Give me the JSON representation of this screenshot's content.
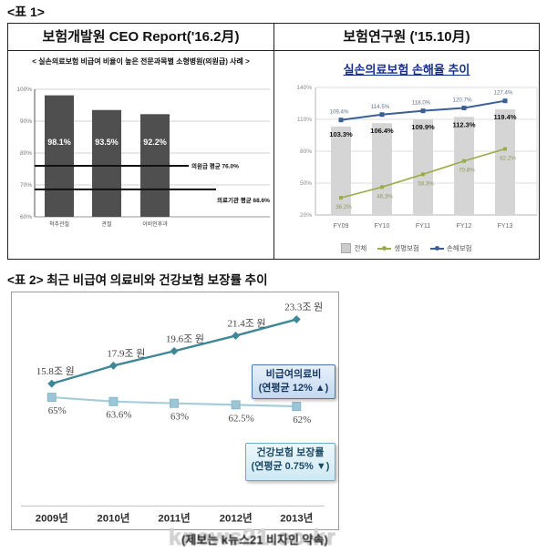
{
  "labels": {
    "table1_tag": "<표 1>",
    "table2_tag": "<표 2> 최근 비급여 의료비와 건강보험 보장률 추이"
  },
  "table1": {
    "left_header": "보험개발원 CEO Report('16.2月)",
    "left_subtitle": "< 실손의료보험 비급여 비율이 높은 전문과목별 소형병원(의원급) 사례 >",
    "right_header": "보험연구원 ('15.10月)",
    "right_subtitle": "실손의료보험 손해율 추이",
    "legend": [
      {
        "label": "전체",
        "swatch": "bar",
        "color": "#cccccc"
      },
      {
        "label": "생명보험",
        "swatch": "line-dot",
        "color": "#9aad4c"
      },
      {
        "label": "손해보험",
        "swatch": "line-dot",
        "color": "#3b5f94"
      }
    ]
  },
  "watermark": {
    "main": "knews21.co.kr",
    "overlay": "(제보는 k뉴스21 비자인 약속)"
  },
  "colors": {
    "dark_bar": "#4f4f4f",
    "light_bar": "#d5d5d5",
    "blue_line": "#3b5f94",
    "green_line": "#9aad4c",
    "teal_line": "#3e8796",
    "pale_blue_line": "#a6cdda",
    "title_blue": "#15308f"
  },
  "chart_data": [
    {
      "id": "specialty-nonpay-bars",
      "type": "bar",
      "title": "< 실손의료보험 비급여 비율이 높은 전문과목별 소형병원(의원급) 사례 >",
      "categories": [
        "척추관절",
        "관절",
        "이비인후과"
      ],
      "values": [
        98.1,
        93.5,
        92.2
      ],
      "value_labels": [
        "98.1%",
        "93.5%",
        "92.2%"
      ],
      "ylim": [
        60,
        100
      ],
      "yticks": [
        "100%",
        "90%",
        "80%",
        "70%",
        "60%"
      ],
      "ref_lines": [
        {
          "value": 76.0,
          "label": "의원급 평균 76.0%"
        },
        {
          "value": 68.6,
          "label": "의료기관 평균 68.6%"
        }
      ],
      "grid": true,
      "legend_position": "none"
    },
    {
      "id": "silson-loss-ratio",
      "type": "bar+line",
      "title": "실손의료보험 손해율 추이",
      "categories": [
        "FY09",
        "FY10",
        "FY11",
        "FY12",
        "FY13"
      ],
      "series": [
        {
          "name": "전체",
          "type": "bar",
          "values": [
            103.3,
            106.4,
            109.9,
            112.3,
            119.4
          ],
          "labels": [
            "103.3%",
            "106.4%",
            "109.9%",
            "112.3%",
            "119.4%"
          ]
        },
        {
          "name": "생명보험",
          "type": "line",
          "values": [
            36.2,
            46.3,
            58.3,
            70.8,
            82.2
          ],
          "labels": [
            "36.2%",
            "46.3%",
            "58.3%",
            "70.8%",
            "82.2%"
          ]
        },
        {
          "name": "손해보험",
          "type": "line",
          "values": [
            109.4,
            114.5,
            118.0,
            120.7,
            127.4
          ],
          "labels": [
            "109.4%",
            "114.5%",
            "118.0%",
            "120.7%",
            "127.4%"
          ]
        }
      ],
      "ylim": [
        20,
        140
      ],
      "yticks": [
        "140%",
        "110%",
        "80%",
        "50%",
        "20%"
      ],
      "grid": true,
      "legend_position": "bottom"
    },
    {
      "id": "coverage-trend",
      "type": "line",
      "title": "최근 비급여 의료비와 건강보험 보장률 추이",
      "categories": [
        "2009년",
        "2010년",
        "2011년",
        "2012년",
        "2013년"
      ],
      "series": [
        {
          "name": "비급여의료비",
          "values": [
            15.8,
            17.9,
            19.6,
            21.4,
            23.3
          ],
          "labels": [
            "15.8조 원",
            "17.9조 원",
            "19.6조 원",
            "21.4조 원",
            "23.3조 원"
          ],
          "annotation": [
            "비급여의료비",
            "(연평균 12% ▲)"
          ]
        },
        {
          "name": "건강보험 보장률",
          "values": [
            65,
            63.6,
            63,
            62.5,
            62
          ],
          "labels": [
            "65%",
            "63.6%",
            "63%",
            "62.5%",
            "62%"
          ],
          "annotation": [
            "건강보험 보장률",
            "(연평균 0.75% ▼)"
          ]
        }
      ],
      "grid": false,
      "legend_position": "none"
    }
  ]
}
